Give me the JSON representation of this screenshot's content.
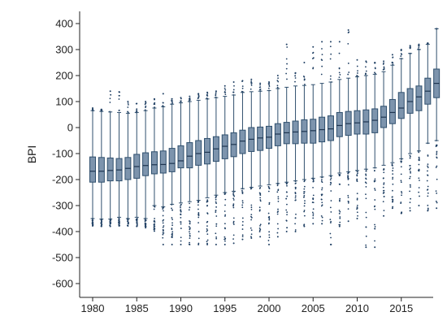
{
  "chart_data": {
    "type": "box",
    "title": "",
    "xlabel": "",
    "ylabel": "BPI",
    "ylim": [
      -650,
      420
    ],
    "xlim": [
      1979,
      2019
    ],
    "yticks": [
      400,
      300,
      200,
      100,
      0,
      -100,
      -200,
      -300,
      -400,
      -500,
      -600
    ],
    "xticks": [
      1980,
      1985,
      1990,
      1995,
      2000,
      2005,
      2010,
      2015
    ],
    "grid": false,
    "legend": "none",
    "colors": {
      "box_fill": "#7d94ad",
      "box_stroke": "#2f4f6d",
      "outlier": "#1f3f63",
      "axis": "#222222"
    },
    "series": [
      {
        "year": 1980,
        "q1": -210,
        "median": -168,
        "q3": -113,
        "whisker_low": -350,
        "whisker_high": 65,
        "outlier_max": 75,
        "outlier_min": -378
      },
      {
        "year": 1981,
        "q1": -210,
        "median": -168,
        "q3": -115,
        "whisker_low": -352,
        "whisker_high": 62,
        "outlier_max": 70,
        "outlier_min": -380
      },
      {
        "year": 1982,
        "q1": -205,
        "median": -165,
        "q3": -117,
        "whisker_low": -352,
        "whisker_high": 60,
        "outlier_max": 140,
        "outlier_min": -380
      },
      {
        "year": 1983,
        "q1": -205,
        "median": -163,
        "q3": -119,
        "whisker_low": -345,
        "whisker_high": 58,
        "outlier_max": 137,
        "outlier_min": -378
      },
      {
        "year": 1984,
        "q1": -200,
        "median": -157,
        "q3": -115,
        "whisker_low": -350,
        "whisker_high": 55,
        "outlier_max": 100,
        "outlier_min": -378
      },
      {
        "year": 1985,
        "q1": -195,
        "median": -150,
        "q3": -103,
        "whisker_low": -345,
        "whisker_high": 58,
        "outlier_max": 92,
        "outlier_min": -380
      },
      {
        "year": 1986,
        "q1": -185,
        "median": -146,
        "q3": -97,
        "whisker_low": -350,
        "whisker_high": 65,
        "outlier_max": 100,
        "outlier_min": -385
      },
      {
        "year": 1987,
        "q1": -178,
        "median": -143,
        "q3": -93,
        "whisker_low": -300,
        "whisker_high": 75,
        "outlier_max": 110,
        "outlier_min": -398
      },
      {
        "year": 1988,
        "q1": -175,
        "median": -142,
        "q3": -90,
        "whisker_low": -305,
        "whisker_high": 80,
        "outlier_max": 130,
        "outlier_min": -450
      },
      {
        "year": 1989,
        "q1": -170,
        "median": -138,
        "q3": -80,
        "whisker_low": -295,
        "whisker_high": 90,
        "outlier_max": 110,
        "outlier_min": -450
      },
      {
        "year": 1990,
        "q1": -155,
        "median": -128,
        "q3": -70,
        "whisker_low": -290,
        "whisker_high": 95,
        "outlier_max": 115,
        "outlier_min": -450
      },
      {
        "year": 1991,
        "q1": -155,
        "median": -110,
        "q3": -58,
        "whisker_low": -285,
        "whisker_high": 100,
        "outlier_max": 120,
        "outlier_min": -450
      },
      {
        "year": 1992,
        "q1": -145,
        "median": -100,
        "q3": -50,
        "whisker_low": -280,
        "whisker_high": 105,
        "outlier_max": 130,
        "outlier_min": -450
      },
      {
        "year": 1993,
        "q1": -140,
        "median": -95,
        "q3": -42,
        "whisker_low": -270,
        "whisker_high": 110,
        "outlier_max": 135,
        "outlier_min": -450
      },
      {
        "year": 1994,
        "q1": -130,
        "median": -82,
        "q3": -35,
        "whisker_low": -260,
        "whisker_high": 115,
        "outlier_max": 140,
        "outlier_min": -450
      },
      {
        "year": 1995,
        "q1": -120,
        "median": -72,
        "q3": -28,
        "whisker_low": -250,
        "whisker_high": 120,
        "outlier_max": 160,
        "outlier_min": -450
      },
      {
        "year": 1996,
        "q1": -112,
        "median": -65,
        "q3": -20,
        "whisker_low": -245,
        "whisker_high": 125,
        "outlier_max": 175,
        "outlier_min": -445
      },
      {
        "year": 1997,
        "q1": -100,
        "median": -52,
        "q3": -10,
        "whisker_low": -235,
        "whisker_high": 135,
        "outlier_max": 180,
        "outlier_min": -430
      },
      {
        "year": 1998,
        "q1": -92,
        "median": -45,
        "q3": 0,
        "whisker_low": -230,
        "whisker_high": 138,
        "outlier_max": 185,
        "outlier_min": -425
      },
      {
        "year": 1999,
        "q1": -88,
        "median": -40,
        "q3": 2,
        "whisker_low": -225,
        "whisker_high": 140,
        "outlier_max": 170,
        "outlier_min": -420
      },
      {
        "year": 2000,
        "q1": -80,
        "median": -37,
        "q3": 5,
        "whisker_low": -220,
        "whisker_high": 142,
        "outlier_max": 175,
        "outlier_min": -450
      },
      {
        "year": 2001,
        "q1": -70,
        "median": -25,
        "q3": 15,
        "whisker_low": -215,
        "whisker_high": 150,
        "outlier_max": 200,
        "outlier_min": -420
      },
      {
        "year": 2002,
        "q1": -62,
        "median": -20,
        "q3": 20,
        "whisker_low": -210,
        "whisker_high": 155,
        "outlier_max": 320,
        "outlier_min": -400
      },
      {
        "year": 2003,
        "q1": -62,
        "median": -17,
        "q3": 25,
        "whisker_low": -205,
        "whisker_high": 160,
        "outlier_max": 210,
        "outlier_min": -400
      },
      {
        "year": 2004,
        "q1": -60,
        "median": -15,
        "q3": 30,
        "whisker_low": -200,
        "whisker_high": 162,
        "outlier_max": 250,
        "outlier_min": -380
      },
      {
        "year": 2005,
        "q1": -60,
        "median": -12,
        "q3": 32,
        "whisker_low": -195,
        "whisker_high": 165,
        "outlier_max": 310,
        "outlier_min": -370
      },
      {
        "year": 2006,
        "q1": -55,
        "median": -8,
        "q3": 40,
        "whisker_low": -190,
        "whisker_high": 170,
        "outlier_max": 330,
        "outlier_min": -370
      },
      {
        "year": 2007,
        "q1": -50,
        "median": -5,
        "q3": 45,
        "whisker_low": -185,
        "whisker_high": 175,
        "outlier_max": 330,
        "outlier_min": -450
      },
      {
        "year": 2008,
        "q1": -35,
        "median": 8,
        "q3": 58,
        "whisker_low": -175,
        "whisker_high": 185,
        "outlier_max": 330,
        "outlier_min": -380
      },
      {
        "year": 2009,
        "q1": -30,
        "median": 15,
        "q3": 62,
        "whisker_low": -170,
        "whisker_high": 190,
        "outlier_max": 375,
        "outlier_min": -360
      },
      {
        "year": 2010,
        "q1": -25,
        "median": 18,
        "q3": 65,
        "whisker_low": -165,
        "whisker_high": 195,
        "outlier_max": 260,
        "outlier_min": -350
      },
      {
        "year": 2011,
        "q1": -25,
        "median": 22,
        "q3": 68,
        "whisker_low": -160,
        "whisker_high": 200,
        "outlier_max": 255,
        "outlier_min": -460
      },
      {
        "year": 2012,
        "q1": -20,
        "median": 28,
        "q3": 72,
        "whisker_low": -155,
        "whisker_high": 205,
        "outlier_max": 250,
        "outlier_min": -460
      },
      {
        "year": 2013,
        "q1": 0,
        "median": 40,
        "q3": 82,
        "whisker_low": -145,
        "whisker_high": 215,
        "outlier_max": 255,
        "outlier_min": -340
      },
      {
        "year": 2014,
        "q1": 15,
        "median": 58,
        "q3": 108,
        "whisker_low": -135,
        "whisker_high": 240,
        "outlier_max": 280,
        "outlier_min": -310
      },
      {
        "year": 2015,
        "q1": 35,
        "median": 75,
        "q3": 135,
        "whisker_low": -120,
        "whisker_high": 265,
        "outlier_max": 300,
        "outlier_min": -330
      },
      {
        "year": 2016,
        "q1": 55,
        "median": 100,
        "q3": 150,
        "whisker_low": -100,
        "whisker_high": 285,
        "outlier_max": 315,
        "outlier_min": -320
      },
      {
        "year": 2017,
        "q1": 65,
        "median": 118,
        "q3": 160,
        "whisker_low": -90,
        "whisker_high": 300,
        "outlier_max": 320,
        "outlier_min": -300
      },
      {
        "year": 2018,
        "q1": 90,
        "median": 140,
        "q3": 190,
        "whisker_low": -60,
        "whisker_high": 320,
        "outlier_max": 325,
        "outlier_min": -320
      },
      {
        "year": 2019,
        "q1": 115,
        "median": 170,
        "q3": 225,
        "whisker_low": -50,
        "whisker_high": 380,
        "outlier_max": 380,
        "outlier_min": -310
      }
    ]
  }
}
